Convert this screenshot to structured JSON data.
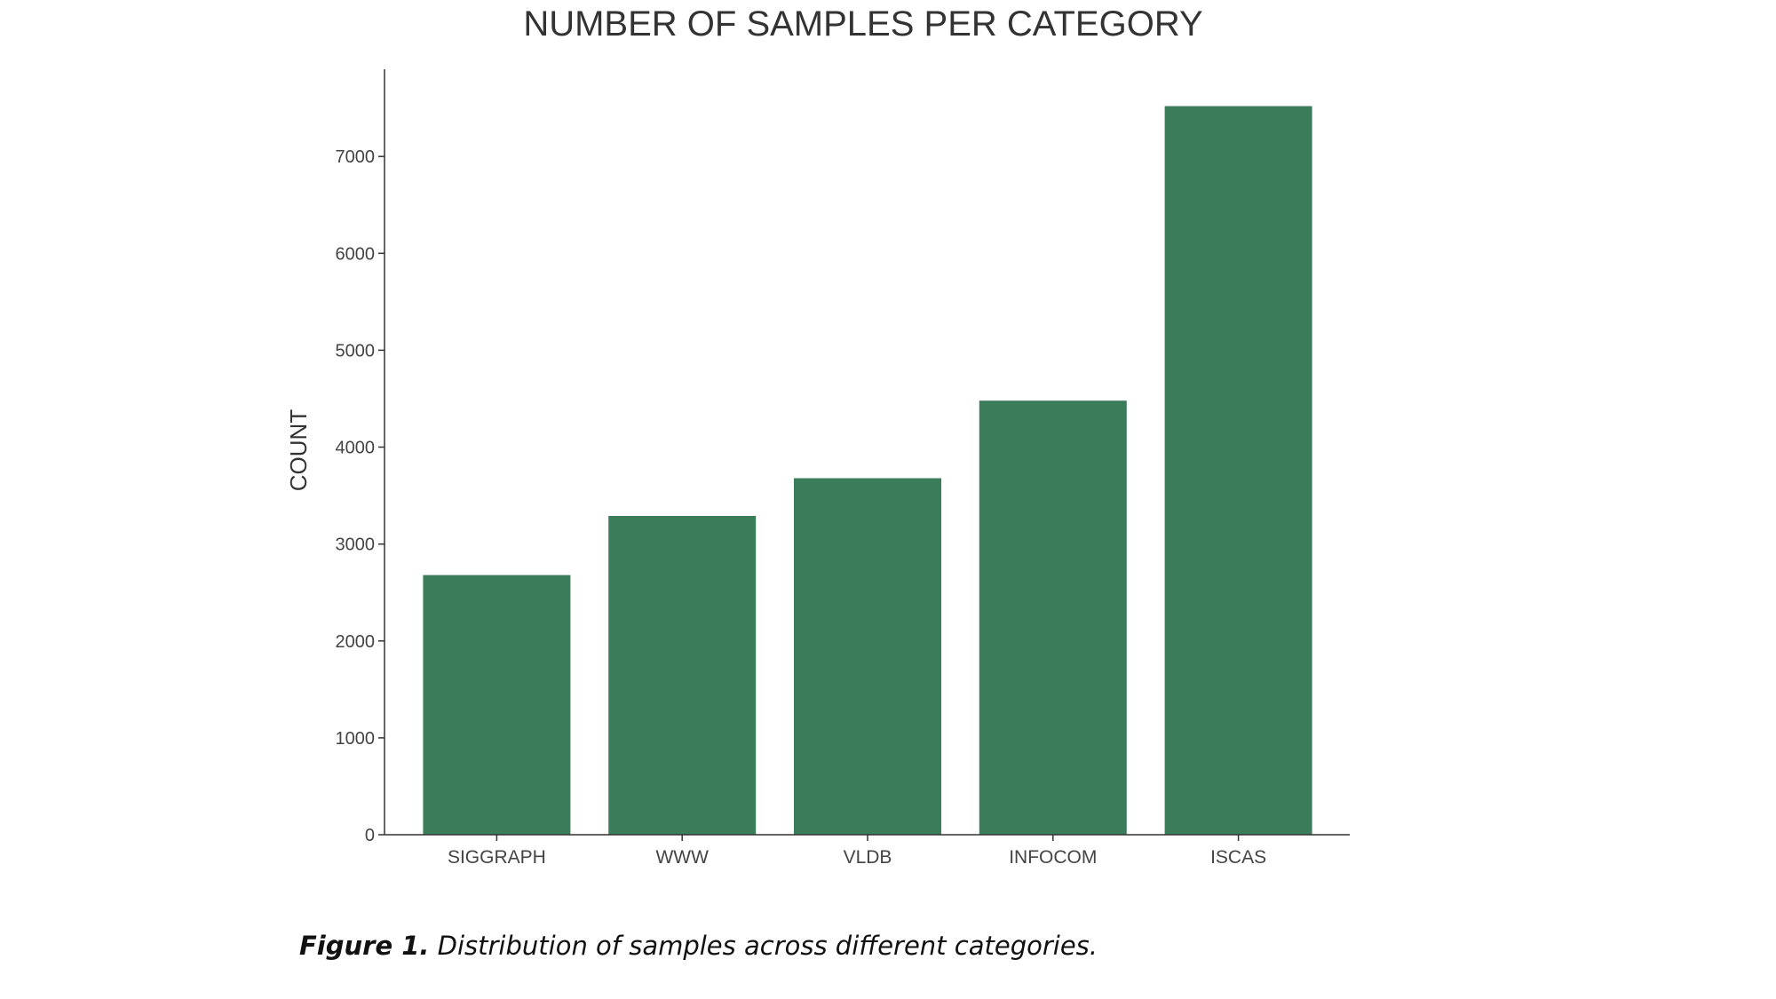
{
  "caption": {
    "label": "Figure 1.",
    "text": "Distribution of samples across different categories."
  },
  "chart_data": {
    "type": "bar",
    "title": "NUMBER OF SAMPLES PER CATEGORY",
    "xlabel": "",
    "ylabel": "COUNT",
    "categories": [
      "SIGGRAPH",
      "WWW",
      "VLDB",
      "INFOCOM",
      "ISCAS"
    ],
    "values": [
      2680,
      3290,
      3680,
      4480,
      7520
    ],
    "ylim": [
      0,
      7900
    ],
    "yticks": [
      0,
      1000,
      2000,
      3000,
      4000,
      5000,
      6000,
      7000
    ],
    "bar_color": "#3b7d5a",
    "grid": false,
    "legend": "none"
  }
}
